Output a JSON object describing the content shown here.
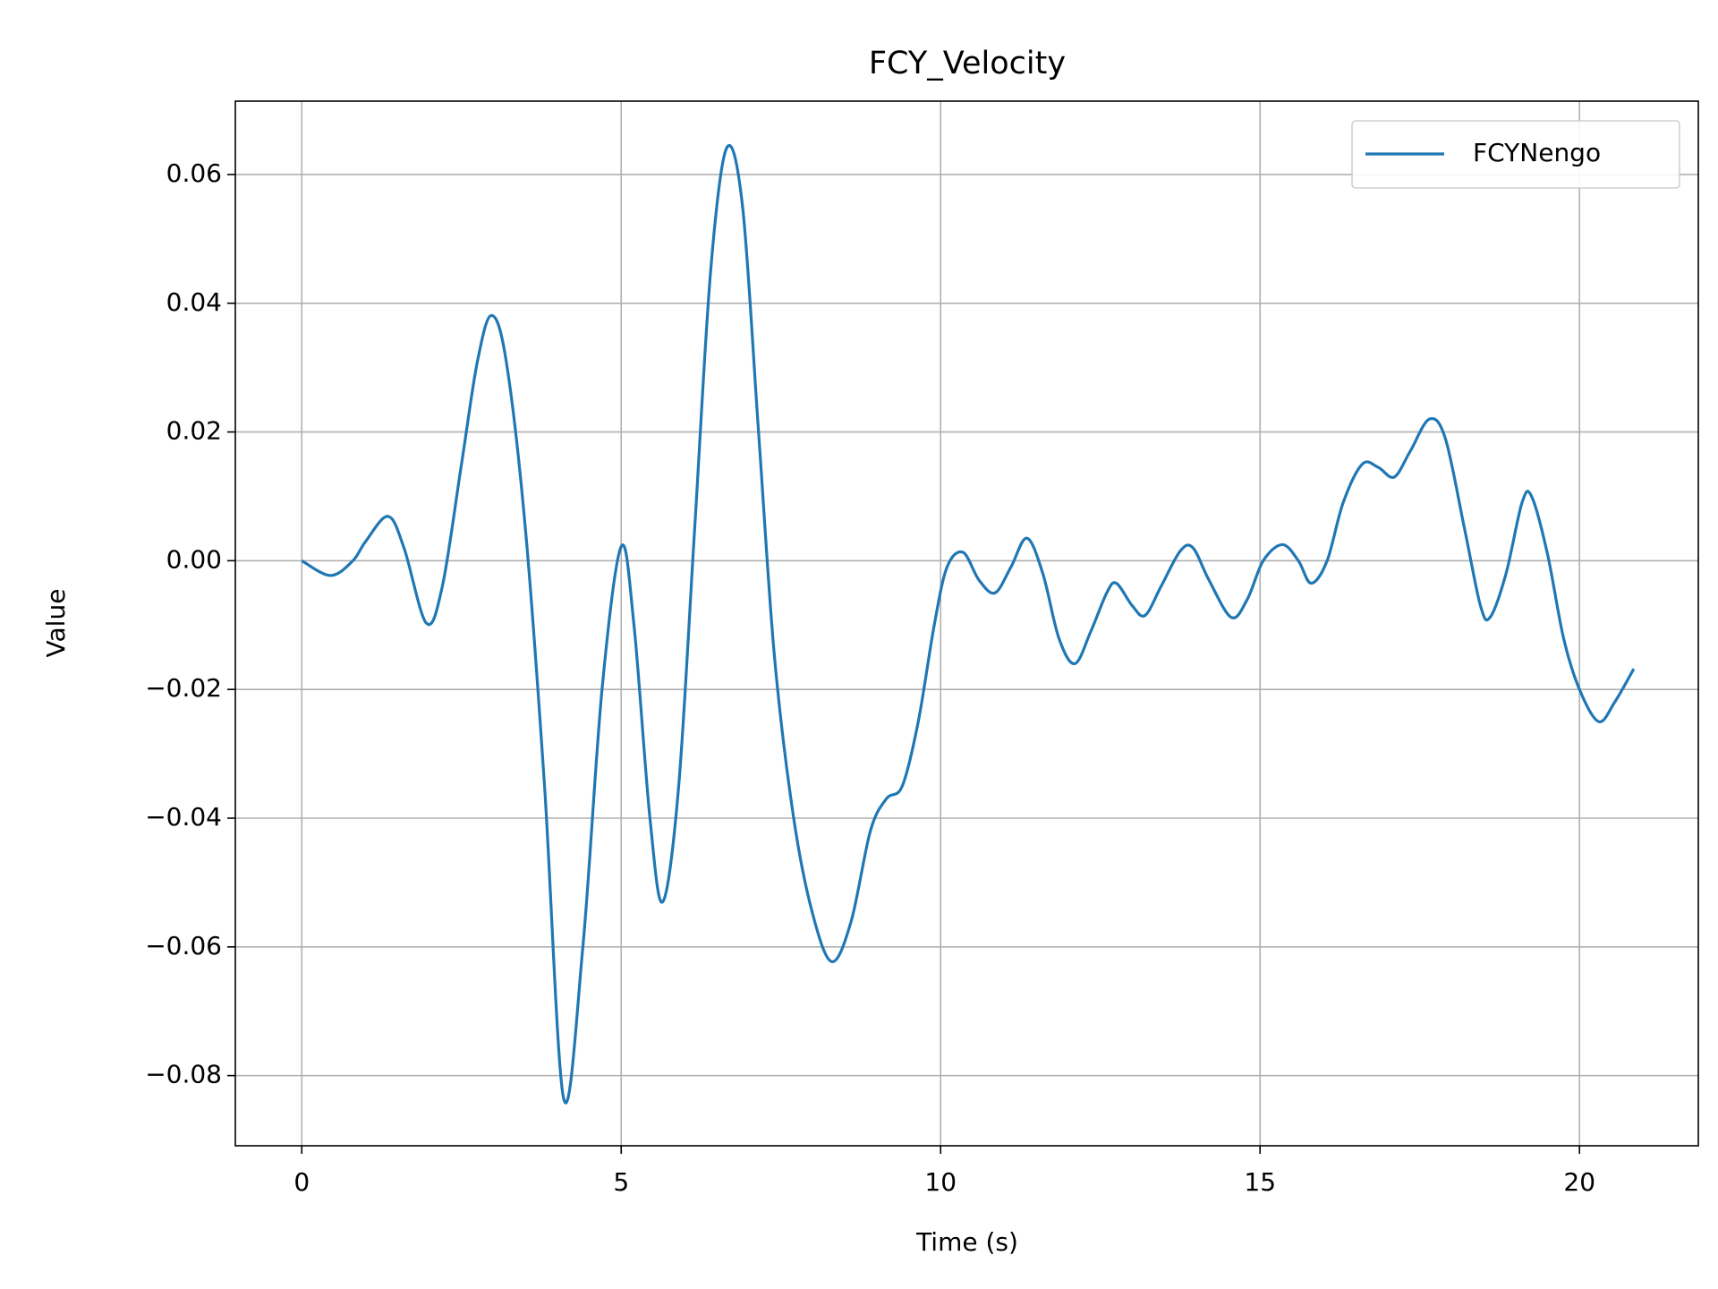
{
  "chart_data": {
    "type": "line",
    "title": "FCY_Velocity",
    "x_label": "Time (s)",
    "y_label": "Value",
    "x": [
      0,
      0.45,
      0.8,
      1.0,
      1.35,
      1.6,
      1.95,
      2.2,
      2.5,
      2.75,
      2.97,
      3.2,
      3.5,
      3.8,
      4.1,
      4.4,
      4.7,
      5.0,
      5.2,
      5.45,
      5.65,
      5.9,
      6.15,
      6.4,
      6.65,
      6.9,
      7.15,
      7.4,
      7.7,
      8.0,
      8.3,
      8.6,
      8.9,
      9.15,
      9.4,
      9.65,
      9.9,
      10.1,
      10.35,
      10.6,
      10.85,
      11.1,
      11.35,
      11.6,
      11.85,
      12.1,
      12.35,
      12.6,
      12.75,
      13.0,
      13.2,
      13.45,
      13.75,
      13.95,
      14.2,
      14.55,
      14.8,
      15.05,
      15.35,
      15.6,
      15.8,
      16.05,
      16.3,
      16.6,
      16.85,
      17.1,
      17.35,
      17.65,
      17.9,
      18.2,
      18.45,
      18.6,
      18.85,
      19.1,
      19.25,
      19.5,
      19.75,
      20.0,
      20.3,
      20.55,
      20.85
    ],
    "series": [
      {
        "name": "FCYNengo",
        "color": "#1f77b4",
        "values": [
          0,
          -0.0023,
          0.0,
          0.003,
          0.0069,
          0.002,
          -0.0097,
          -0.004,
          0.015,
          0.031,
          0.0381,
          0.031,
          0.005,
          -0.035,
          -0.0836,
          -0.06,
          -0.02,
          0.0022,
          -0.01,
          -0.04,
          -0.053,
          -0.035,
          0.005,
          0.045,
          0.0641,
          0.055,
          0.02,
          -0.015,
          -0.04,
          -0.055,
          -0.0623,
          -0.056,
          -0.042,
          -0.037,
          -0.035,
          -0.025,
          -0.01,
          -0.001,
          0.0013,
          -0.003,
          -0.005,
          -0.001,
          0.0035,
          -0.002,
          -0.012,
          -0.016,
          -0.011,
          -0.005,
          -0.0035,
          -0.007,
          -0.0085,
          -0.004,
          0.0015,
          0.002,
          -0.003,
          -0.0088,
          -0.006,
          0.0,
          0.0025,
          0.0,
          -0.0035,
          0.0,
          0.009,
          0.015,
          0.0145,
          0.013,
          0.017,
          0.022,
          0.019,
          0.005,
          -0.007,
          -0.0088,
          -0.002,
          0.009,
          0.01,
          0.001,
          -0.012,
          -0.02,
          -0.025,
          -0.022,
          -0.0168
        ]
      }
    ],
    "xlim": [
      -1.04,
      21.86
    ],
    "xticks": [
      0,
      5,
      10,
      15,
      20
    ],
    "ylim": [
      -0.0909,
      0.0714
    ],
    "yticks": [
      {
        "value": -0.08,
        "label": "−0.08"
      },
      {
        "value": -0.06,
        "label": "−0.06"
      },
      {
        "value": -0.04,
        "label": "−0.04"
      },
      {
        "value": -0.02,
        "label": "−0.02"
      },
      {
        "value": 0,
        "label": "0.00"
      },
      0.02,
      0.04,
      0.06
    ],
    "grid": true,
    "legend": "upper right"
  }
}
